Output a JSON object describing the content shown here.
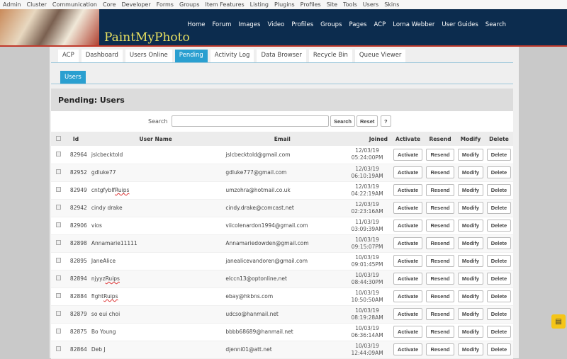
{
  "topmenu": [
    "Admin",
    "Cluster",
    "Communication",
    "Core",
    "Developer",
    "Forms",
    "Groups",
    "Item Features",
    "Listing",
    "Plugins",
    "Profiles",
    "Site",
    "Tools",
    "Users",
    "Skins"
  ],
  "site": {
    "logo": "PaintMyPhoto"
  },
  "nav": [
    "Home",
    "Forum",
    "Images",
    "Video",
    "Profiles",
    "Groups",
    "Pages",
    "ACP",
    "Lorna Webber",
    "User Guides",
    "Search"
  ],
  "tabs": [
    "ACP",
    "Dashboard",
    "Users Online",
    "Pending",
    "Activity Log",
    "Data Browser",
    "Recycle Bin",
    "Queue Viewer"
  ],
  "active_tab": "Pending",
  "subtab": "Users",
  "title": "Pending: Users",
  "search": {
    "label": "Search",
    "value": "",
    "search_btn": "Search",
    "reset_btn": "Reset",
    "help_btn": "?"
  },
  "columns": [
    "Id",
    "User Name",
    "Email",
    "Joined",
    "Activate",
    "Resend",
    "Modify",
    "Delete"
  ],
  "actions": {
    "activate": "Activate",
    "resend": "Resend",
    "modify": "Modify",
    "delete": "Delete"
  },
  "rows": [
    {
      "id": "82964",
      "name": "jslcbecktold",
      "email": "jslcbecktold@gmail.com",
      "date": "12/03/19",
      "time": "05:24:00PM"
    },
    {
      "id": "82952",
      "name": "gdluke77",
      "email": "gdluke777@gmail.com",
      "date": "12/03/19",
      "time": "06:10:19AM"
    },
    {
      "id": "82949",
      "name": "cntgfybIf",
      "name_sq": "Ruips",
      "email": "umzohra@hotmail.co.uk",
      "date": "12/03/19",
      "time": "04:22:19AM"
    },
    {
      "id": "82942",
      "name": "cindy drake",
      "email": "cindy.drake@comcast.net",
      "date": "12/03/19",
      "time": "02:23:16AM"
    },
    {
      "id": "82906",
      "name": "vios",
      "email": "viicolenardon1994@gmail.com",
      "date": "11/03/19",
      "time": "03:09:39AM"
    },
    {
      "id": "82898",
      "name": "Annamarie11111",
      "email": "Annamariedowden@gmail.com",
      "date": "10/03/19",
      "time": "09:15:07PM"
    },
    {
      "id": "82895",
      "name": "JaneAlice",
      "email": "janealicevandoren@gmail.com",
      "date": "10/03/19",
      "time": "09:01:45PM"
    },
    {
      "id": "82894",
      "name": "njyyz",
      "name_sq": "Ruips",
      "email": "elccn13@optonline.net",
      "date": "10/03/19",
      "time": "08:44:30PM"
    },
    {
      "id": "82884",
      "name": "fight",
      "name_sq": "Ruips",
      "email": "ebay@hkbns.com",
      "date": "10/03/19",
      "time": "10:50:50AM"
    },
    {
      "id": "82879",
      "name": "so eui choi",
      "email": "udcso@hanmail.net",
      "date": "10/03/19",
      "time": "08:19:28AM"
    },
    {
      "id": "82875",
      "name": "Bo Young",
      "email": "bbbb68689@hanmail.net",
      "date": "10/03/19",
      "time": "06:36:14AM"
    },
    {
      "id": "82864",
      "name": "Deb J",
      "email": "djenni01@att.net",
      "date": "10/03/19",
      "time": "12:44:09AM"
    }
  ],
  "colors": {
    "accent": "#2a9fd0",
    "header": "#0c2c4e",
    "logo": "#e8e060",
    "chat": "#f5c518"
  },
  "icons": {
    "chat": "chat-bubble-icon"
  }
}
